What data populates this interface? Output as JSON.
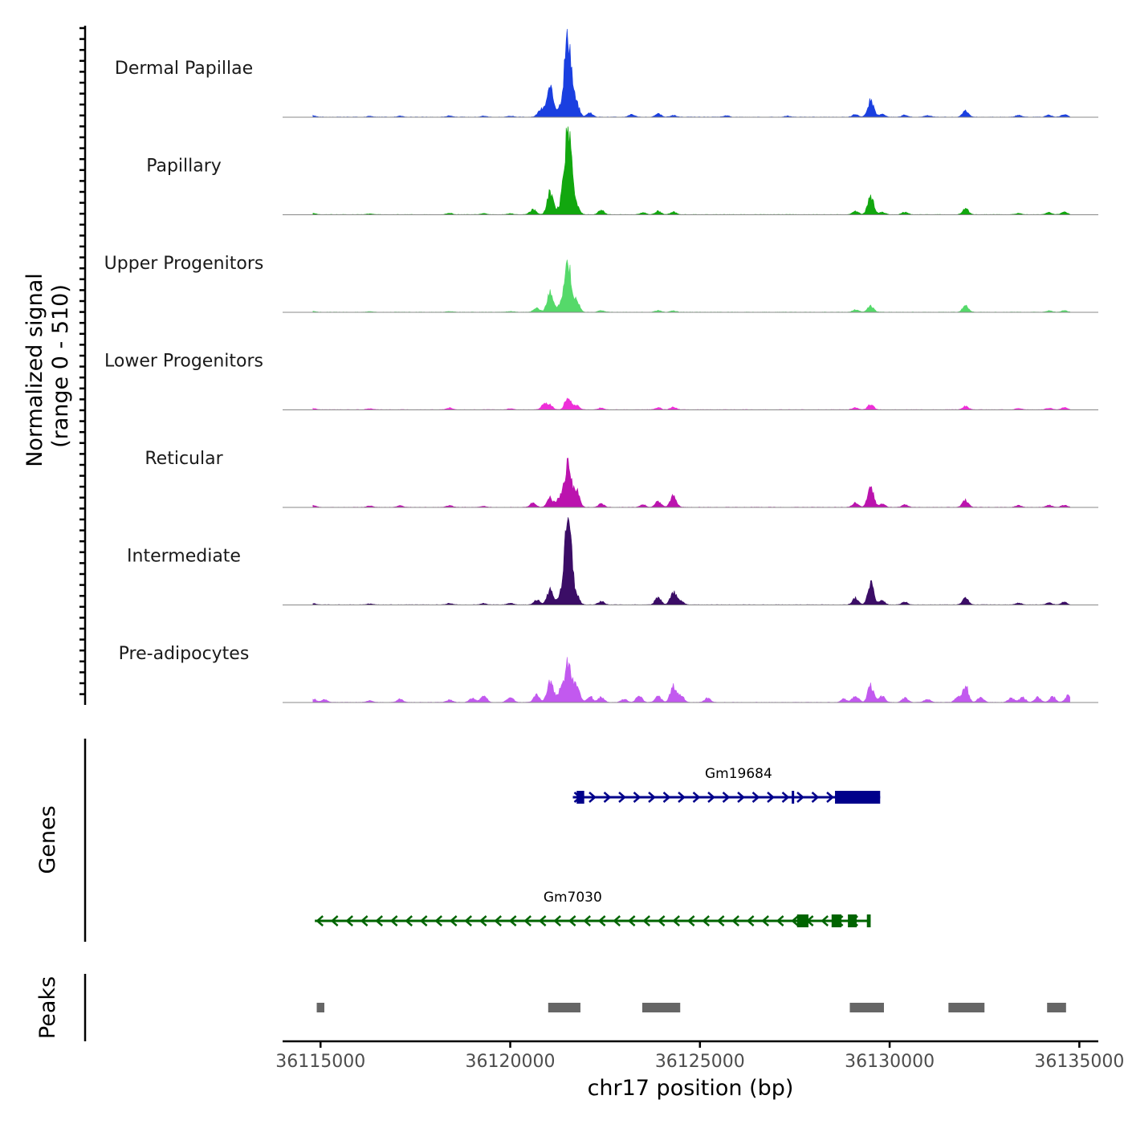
{
  "chart_data": {
    "type": "coverage",
    "chromosome": "chr17",
    "xlabel": "chr17 position (bp)",
    "xlim": [
      36114000,
      36135500
    ],
    "x_ticks": [
      36115000,
      36120000,
      36125000,
      36130000,
      36135000
    ],
    "x_tick_labels": [
      "36115000",
      "36120000",
      "36125000",
      "36130000",
      "36135000"
    ],
    "ylabel": "Normalized signal",
    "ylabel_range": "(range 0 - 510)",
    "ylim": [
      0,
      510
    ],
    "tracks": [
      {
        "name": "Dermal Papillae",
        "color": "#1a3fe0",
        "peaks": [
          [
            36114800,
            8
          ],
          [
            36116300,
            5
          ],
          [
            36117100,
            6
          ],
          [
            36118400,
            8
          ],
          [
            36119300,
            6
          ],
          [
            36120000,
            6
          ],
          [
            36120800,
            40
          ],
          [
            36121050,
            160
          ],
          [
            36121300,
            40
          ],
          [
            36121520,
            490
          ],
          [
            36121750,
            70
          ],
          [
            36122100,
            25
          ],
          [
            36123200,
            15
          ],
          [
            36123900,
            20
          ],
          [
            36124300,
            10
          ],
          [
            36125700,
            8
          ],
          [
            36127300,
            6
          ],
          [
            36129100,
            15
          ],
          [
            36129500,
            95
          ],
          [
            36129800,
            20
          ],
          [
            36130400,
            12
          ],
          [
            36131000,
            10
          ],
          [
            36132000,
            35
          ],
          [
            36133400,
            10
          ],
          [
            36134200,
            12
          ],
          [
            36134600,
            15
          ]
        ]
      },
      {
        "name": "Papillary",
        "color": "#12a70f",
        "peaks": [
          [
            36114800,
            8
          ],
          [
            36116300,
            5
          ],
          [
            36118400,
            8
          ],
          [
            36119300,
            6
          ],
          [
            36120000,
            6
          ],
          [
            36120600,
            30
          ],
          [
            36121050,
            130
          ],
          [
            36121300,
            35
          ],
          [
            36121520,
            520
          ],
          [
            36121750,
            50
          ],
          [
            36122400,
            25
          ],
          [
            36123500,
            12
          ],
          [
            36123900,
            20
          ],
          [
            36124300,
            15
          ],
          [
            36129100,
            20
          ],
          [
            36129500,
            110
          ],
          [
            36129800,
            15
          ],
          [
            36130400,
            15
          ],
          [
            36132000,
            35
          ],
          [
            36133400,
            8
          ],
          [
            36134200,
            12
          ],
          [
            36134600,
            15
          ]
        ]
      },
      {
        "name": "Upper Progenitors",
        "color": "#55d96a",
        "peaks": [
          [
            36114800,
            5
          ],
          [
            36116300,
            4
          ],
          [
            36118400,
            5
          ],
          [
            36120000,
            5
          ],
          [
            36120700,
            25
          ],
          [
            36121050,
            120
          ],
          [
            36121300,
            30
          ],
          [
            36121520,
            270
          ],
          [
            36121750,
            60
          ],
          [
            36122400,
            10
          ],
          [
            36123900,
            10
          ],
          [
            36124300,
            8
          ],
          [
            36129100,
            15
          ],
          [
            36129500,
            35
          ],
          [
            36132000,
            40
          ],
          [
            36134200,
            8
          ],
          [
            36134600,
            10
          ]
        ]
      },
      {
        "name": "Lower Progenitors",
        "color": "#ee2fd8",
        "peaks": [
          [
            36114800,
            8
          ],
          [
            36116300,
            6
          ],
          [
            36118400,
            10
          ],
          [
            36120000,
            6
          ],
          [
            36120900,
            30
          ],
          [
            36121050,
            25
          ],
          [
            36121520,
            75
          ],
          [
            36121750,
            25
          ],
          [
            36122400,
            10
          ],
          [
            36123900,
            12
          ],
          [
            36124300,
            15
          ],
          [
            36129100,
            12
          ],
          [
            36129500,
            30
          ],
          [
            36132000,
            20
          ],
          [
            36133400,
            8
          ],
          [
            36134200,
            10
          ],
          [
            36134600,
            12
          ]
        ]
      },
      {
        "name": "Reticular",
        "color": "#bb13ae",
        "peaks": [
          [
            36114800,
            10
          ],
          [
            36116300,
            8
          ],
          [
            36117100,
            8
          ],
          [
            36118400,
            10
          ],
          [
            36119300,
            6
          ],
          [
            36120600,
            25
          ],
          [
            36121050,
            55
          ],
          [
            36121300,
            50
          ],
          [
            36121520,
            250
          ],
          [
            36121750,
            90
          ],
          [
            36122400,
            20
          ],
          [
            36123500,
            15
          ],
          [
            36123900,
            35
          ],
          [
            36124300,
            70
          ],
          [
            36129100,
            25
          ],
          [
            36129500,
            120
          ],
          [
            36129800,
            20
          ],
          [
            36130400,
            15
          ],
          [
            36132000,
            40
          ],
          [
            36133400,
            10
          ],
          [
            36134200,
            12
          ],
          [
            36134600,
            12
          ]
        ]
      },
      {
        "name": "Intermediate",
        "color": "#3b0d66",
        "peaks": [
          [
            36114800,
            8
          ],
          [
            36116300,
            6
          ],
          [
            36118400,
            8
          ],
          [
            36119300,
            8
          ],
          [
            36120000,
            10
          ],
          [
            36120700,
            30
          ],
          [
            36121050,
            85
          ],
          [
            36121300,
            35
          ],
          [
            36121520,
            520
          ],
          [
            36121750,
            50
          ],
          [
            36122400,
            20
          ],
          [
            36123900,
            45
          ],
          [
            36124300,
            75
          ],
          [
            36124500,
            20
          ],
          [
            36129100,
            40
          ],
          [
            36129500,
            130
          ],
          [
            36129800,
            25
          ],
          [
            36130400,
            15
          ],
          [
            36132000,
            40
          ],
          [
            36133400,
            10
          ],
          [
            36134200,
            12
          ],
          [
            36134600,
            15
          ]
        ]
      },
      {
        "name": "Pre-adipocytes",
        "color": "#c259ef",
        "peaks": [
          [
            36114800,
            20
          ],
          [
            36115100,
            15
          ],
          [
            36116300,
            10
          ],
          [
            36117100,
            20
          ],
          [
            36118400,
            15
          ],
          [
            36119000,
            25
          ],
          [
            36119300,
            40
          ],
          [
            36120000,
            35
          ],
          [
            36120700,
            45
          ],
          [
            36121050,
            125
          ],
          [
            36121300,
            55
          ],
          [
            36121520,
            230
          ],
          [
            36121750,
            95
          ],
          [
            36122100,
            35
          ],
          [
            36122400,
            30
          ],
          [
            36123000,
            20
          ],
          [
            36123400,
            40
          ],
          [
            36123900,
            35
          ],
          [
            36124300,
            95
          ],
          [
            36124500,
            40
          ],
          [
            36125200,
            25
          ],
          [
            36128800,
            20
          ],
          [
            36129100,
            40
          ],
          [
            36129500,
            95
          ],
          [
            36129800,
            35
          ],
          [
            36130400,
            25
          ],
          [
            36131000,
            20
          ],
          [
            36131800,
            30
          ],
          [
            36132000,
            95
          ],
          [
            36132400,
            30
          ],
          [
            36133200,
            25
          ],
          [
            36133500,
            30
          ],
          [
            36133900,
            30
          ],
          [
            36134300,
            35
          ],
          [
            36134700,
            40
          ]
        ]
      }
    ],
    "genes": {
      "title": "Genes",
      "items": [
        {
          "name": "Gm19684",
          "color": "#00008b",
          "strand": "+",
          "start": 36121650,
          "end": 36129750,
          "exons": [
            [
              36121750,
              36121950
            ],
            [
              36127420,
              36127480
            ],
            [
              36128560,
              36129750
            ]
          ]
        },
        {
          "name": "Gm7030",
          "color": "#006400",
          "strand": "-",
          "start": 36114850,
          "end": 36129500,
          "exons": [
            [
              36127560,
              36127860
            ],
            [
              36128470,
              36128730
            ],
            [
              36128900,
              36129130
            ],
            [
              36129400,
              36129500
            ]
          ]
        }
      ]
    },
    "peaks_track": {
      "title": "Peaks",
      "color": "#666666",
      "regions": [
        [
          36114900,
          36115100
        ],
        [
          36121000,
          36121850
        ],
        [
          36123480,
          36124480
        ],
        [
          36128950,
          36129850
        ],
        [
          36131550,
          36132500
        ],
        [
          36134150,
          36134650
        ]
      ]
    }
  }
}
